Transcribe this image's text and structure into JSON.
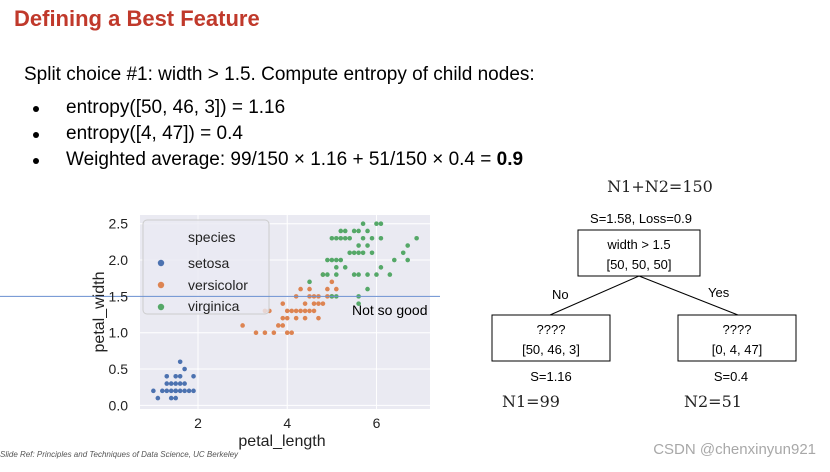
{
  "slide": {
    "title": "Defining a Best Feature",
    "intro": "Split choice #1: width > 1.5. Compute entropy of child nodes:",
    "bullets": [
      {
        "text": "entropy([50, 46, 3]) = 1.16"
      },
      {
        "text": "entropy([4, 47]) = 0.4"
      },
      {
        "text": "Weighted average: 99/150 × 1.16 + 51/150 × 0.4 = ",
        "bold": "0.9"
      }
    ],
    "footer": "Slide Ref:  Principles and Techniques of Data Science, UC Berkeley",
    "watermark": "CSDN @chenxinyun921"
  },
  "chart_data": {
    "type": "scatter",
    "xlabel": "petal_length",
    "ylabel": "petal_width",
    "xlim": [
      0.7,
      7.2
    ],
    "ylim": [
      -0.05,
      2.62
    ],
    "xticks": [
      2,
      4,
      6
    ],
    "yticks": [
      0.0,
      0.5,
      1.0,
      1.5,
      2.0,
      2.5
    ],
    "grid": true,
    "legend": {
      "title": "species",
      "placement": "top-left"
    },
    "hline": {
      "y": 1.5,
      "color": "#6a8fd0",
      "label": "Not so good"
    },
    "series": [
      {
        "name": "setosa",
        "color": "#4c72b0",
        "points": [
          [
            1.0,
            0.2
          ],
          [
            1.1,
            0.1
          ],
          [
            1.2,
            0.2
          ],
          [
            1.3,
            0.2
          ],
          [
            1.3,
            0.3
          ],
          [
            1.3,
            0.4
          ],
          [
            1.4,
            0.1
          ],
          [
            1.4,
            0.2
          ],
          [
            1.4,
            0.3
          ],
          [
            1.5,
            0.1
          ],
          [
            1.5,
            0.2
          ],
          [
            1.5,
            0.3
          ],
          [
            1.5,
            0.4
          ],
          [
            1.6,
            0.2
          ],
          [
            1.6,
            0.4
          ],
          [
            1.6,
            0.6
          ],
          [
            1.7,
            0.2
          ],
          [
            1.7,
            0.3
          ],
          [
            1.7,
            0.5
          ],
          [
            1.9,
            0.2
          ],
          [
            1.9,
            0.4
          ],
          [
            1.8,
            0.2
          ],
          [
            1.6,
            0.3
          ],
          [
            1.5,
            0.2
          ]
        ]
      },
      {
        "name": "versicolor",
        "color": "#dd8452",
        "points": [
          [
            3.0,
            1.1
          ],
          [
            3.3,
            1.0
          ],
          [
            3.5,
            1.0
          ],
          [
            3.6,
            1.3
          ],
          [
            3.7,
            1.0
          ],
          [
            3.8,
            1.1
          ],
          [
            3.9,
            1.1
          ],
          [
            3.9,
            1.2
          ],
          [
            3.9,
            1.4
          ],
          [
            4.0,
            1.0
          ],
          [
            4.0,
            1.2
          ],
          [
            4.0,
            1.3
          ],
          [
            4.1,
            1.0
          ],
          [
            4.1,
            1.3
          ],
          [
            4.2,
            1.2
          ],
          [
            4.2,
            1.3
          ],
          [
            4.2,
            1.5
          ],
          [
            4.3,
            1.3
          ],
          [
            4.4,
            1.2
          ],
          [
            4.4,
            1.3
          ],
          [
            4.4,
            1.4
          ],
          [
            4.5,
            1.3
          ],
          [
            4.5,
            1.5
          ],
          [
            4.5,
            1.6
          ],
          [
            4.6,
            1.3
          ],
          [
            4.6,
            1.4
          ],
          [
            4.6,
            1.5
          ],
          [
            4.7,
            1.2
          ],
          [
            4.7,
            1.4
          ],
          [
            4.7,
            1.5
          ],
          [
            4.8,
            1.4
          ],
          [
            4.8,
            1.8
          ],
          [
            4.9,
            1.5
          ],
          [
            5.0,
            1.7
          ],
          [
            5.1,
            1.6
          ],
          [
            3.5,
            1.3
          ],
          [
            4.3,
            1.6
          ],
          [
            4.9,
            1.6
          ],
          [
            5.0,
            1.5
          ]
        ]
      },
      {
        "name": "virginica",
        "color": "#55a868",
        "points": [
          [
            4.5,
            1.7
          ],
          [
            4.8,
            1.8
          ],
          [
            4.9,
            1.8
          ],
          [
            5.0,
            1.5
          ],
          [
            5.0,
            2.0
          ],
          [
            5.1,
            1.5
          ],
          [
            5.1,
            1.9
          ],
          [
            5.1,
            2.0
          ],
          [
            5.1,
            2.3
          ],
          [
            5.2,
            2.0
          ],
          [
            5.2,
            2.3
          ],
          [
            5.3,
            1.9
          ],
          [
            5.3,
            2.3
          ],
          [
            5.4,
            2.1
          ],
          [
            5.4,
            2.3
          ],
          [
            5.5,
            1.8
          ],
          [
            5.5,
            2.1
          ],
          [
            5.6,
            1.4
          ],
          [
            5.6,
            1.8
          ],
          [
            5.6,
            2.1
          ],
          [
            5.6,
            2.2
          ],
          [
            5.6,
            2.4
          ],
          [
            5.7,
            2.1
          ],
          [
            5.7,
            2.3
          ],
          [
            5.7,
            2.5
          ],
          [
            5.8,
            1.6
          ],
          [
            5.8,
            1.8
          ],
          [
            5.8,
            2.2
          ],
          [
            5.9,
            2.1
          ],
          [
            5.9,
            2.3
          ],
          [
            6.0,
            1.8
          ],
          [
            6.0,
            2.5
          ],
          [
            6.1,
            1.9
          ],
          [
            6.1,
            2.3
          ],
          [
            6.1,
            2.5
          ],
          [
            6.3,
            1.8
          ],
          [
            6.4,
            2.0
          ],
          [
            6.6,
            2.1
          ],
          [
            6.7,
            2.0
          ],
          [
            6.7,
            2.2
          ],
          [
            6.9,
            2.3
          ],
          [
            5.1,
            1.8
          ],
          [
            5.3,
            2.4
          ],
          [
            5.0,
            2.3
          ],
          [
            5.2,
            2.4
          ],
          [
            5.5,
            2.4
          ],
          [
            4.9,
            2.0
          ],
          [
            5.6,
            1.5
          ],
          [
            5.8,
            2.4
          ]
        ]
      }
    ]
  },
  "tree": {
    "total_label": "N1+N2=150",
    "root": {
      "stats": "S=1.58, Loss=0.9",
      "line1": "width > 1.5",
      "line2": "[50, 50, 50]"
    },
    "edges": {
      "left": "No",
      "right": "Yes"
    },
    "left": {
      "line1": "????",
      "line2": "[50, 46, 3]",
      "stats": "S=1.16",
      "count": "N1=99"
    },
    "right": {
      "line1": "????",
      "line2": "[0, 4, 47]",
      "stats": "S=0.4",
      "count": "N2=51"
    }
  }
}
